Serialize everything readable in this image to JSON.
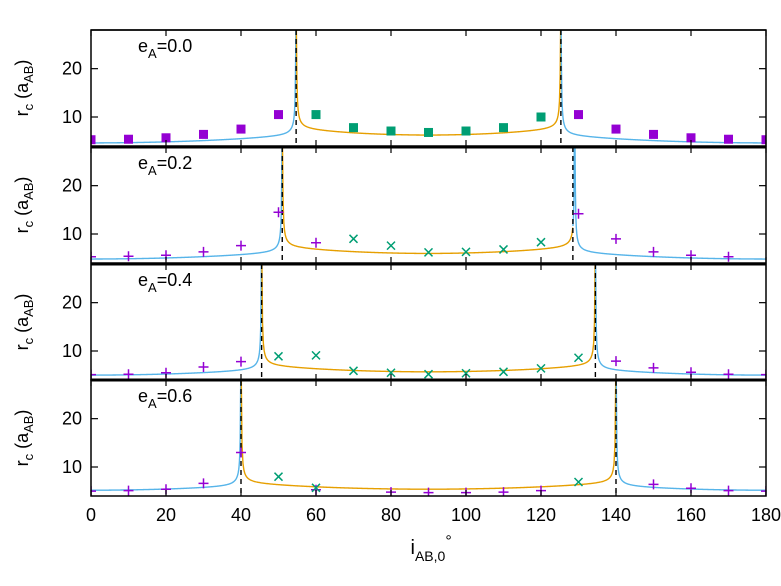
{
  "chart_data": {
    "type": "line",
    "layout": "4 stacked panels sharing x-axis",
    "xlabel": "i",
    "xlabel_sub": "AB,0",
    "xlabel_sup": "°",
    "ylabel": "r",
    "ylabel_sub": "c",
    "ylabel_unit": "(a",
    "ylabel_unit_sub": "AB",
    "ylabel_close": ")",
    "xlim": [
      0,
      180
    ],
    "ylim": [
      4,
      28
    ],
    "xticks": [
      0,
      20,
      40,
      60,
      80,
      100,
      120,
      140,
      160,
      180
    ],
    "yticks": [
      10,
      20
    ],
    "colors": {
      "prograde": "#56b4e9",
      "retrograde": "#e69f00",
      "purple": "#9400d3",
      "green": "#009e73"
    },
    "panels": [
      {
        "label_main": "e",
        "label_sub": "A",
        "label_val": "=0.0",
        "ecc": 0.0,
        "crit": [
          54.7,
          125.3
        ],
        "marker": "square",
        "purple_points": [
          [
            0,
            5.3
          ],
          [
            10,
            5.4
          ],
          [
            20,
            5.7
          ],
          [
            30,
            6.4
          ],
          [
            40,
            7.5
          ],
          [
            50,
            10.5
          ],
          [
            130,
            10.5
          ],
          [
            140,
            7.5
          ],
          [
            150,
            6.4
          ],
          [
            160,
            5.7
          ],
          [
            170,
            5.4
          ],
          [
            180,
            5.3
          ]
        ],
        "green_points": [
          [
            60,
            10.5
          ],
          [
            70,
            7.8
          ],
          [
            80,
            7.1
          ],
          [
            90,
            6.8
          ],
          [
            100,
            7.1
          ],
          [
            110,
            7.8
          ],
          [
            120,
            10.0
          ]
        ]
      },
      {
        "label_main": "e",
        "label_sub": "A",
        "label_val": "=0.2",
        "ecc": 0.2,
        "crit": [
          51.0,
          128.5
        ],
        "marker": "cross",
        "purple_points": [
          [
            0,
            5.3
          ],
          [
            10,
            5.4
          ],
          [
            20,
            5.6
          ],
          [
            30,
            6.3
          ],
          [
            40,
            7.6
          ],
          [
            50,
            14.5
          ],
          [
            60,
            8.2
          ],
          [
            130,
            14.2
          ],
          [
            140,
            9.0
          ],
          [
            150,
            6.3
          ],
          [
            160,
            5.6
          ],
          [
            170,
            5.3
          ]
        ],
        "green_points": [
          [
            70,
            9.0
          ],
          [
            80,
            7.6
          ],
          [
            90,
            6.2
          ],
          [
            100,
            6.3
          ],
          [
            110,
            6.8
          ],
          [
            120,
            8.3
          ]
        ]
      },
      {
        "label_main": "e",
        "label_sub": "A",
        "label_val": "=0.4",
        "ecc": 0.4,
        "crit": [
          45.5,
          134.5
        ],
        "marker": "cross",
        "purple_points": [
          [
            0,
            5.1
          ],
          [
            10,
            5.2
          ],
          [
            20,
            5.5
          ],
          [
            30,
            6.7
          ],
          [
            40,
            7.8
          ],
          [
            140,
            7.9
          ],
          [
            150,
            6.5
          ],
          [
            160,
            5.6
          ],
          [
            170,
            5.2
          ],
          [
            180,
            5.1
          ]
        ],
        "green_points": [
          [
            50,
            8.9
          ],
          [
            60,
            9.1
          ],
          [
            70,
            5.9
          ],
          [
            80,
            5.5
          ],
          [
            90,
            5.2
          ],
          [
            100,
            5.4
          ],
          [
            110,
            5.7
          ],
          [
            120,
            6.4
          ],
          [
            130,
            8.6
          ]
        ]
      },
      {
        "label_main": "e",
        "label_sub": "A",
        "label_val": "=0.6",
        "ecc": 0.6,
        "crit": [
          40.0,
          140.0
        ],
        "marker": "cross",
        "purple_points": [
          [
            0,
            5.0
          ],
          [
            10,
            5.1
          ],
          [
            20,
            5.4
          ],
          [
            30,
            6.6
          ],
          [
            40,
            13.0
          ],
          [
            60,
            5.3
          ],
          [
            80,
            4.8
          ],
          [
            90,
            4.7
          ],
          [
            100,
            4.7
          ],
          [
            110,
            4.8
          ],
          [
            120,
            5.1
          ],
          [
            150,
            6.4
          ],
          [
            160,
            5.6
          ],
          [
            170,
            5.1
          ],
          [
            180,
            5.0
          ]
        ],
        "green_points": [
          [
            50,
            8.0
          ],
          [
            60,
            5.7
          ],
          [
            130,
            6.9
          ]
        ]
      }
    ]
  }
}
